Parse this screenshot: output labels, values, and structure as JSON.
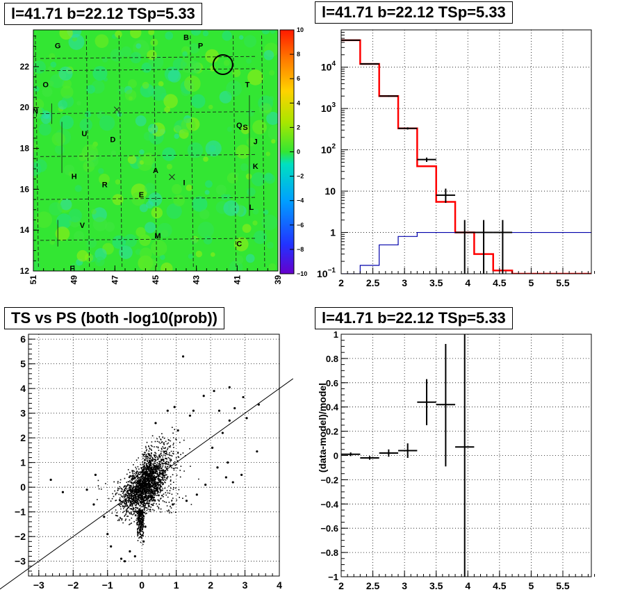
{
  "panels": {
    "map": {
      "title": "l=41.71 b=22.12 TSp=5.33"
    },
    "spectrum": {
      "title": "l=41.71 b=22.12 TSp=5.33"
    },
    "scatter": {
      "title": "TS vs PS (both -log10(prob))"
    },
    "residual": {
      "title": "l=41.71 b=22.12 TSp=5.33"
    }
  },
  "colors": {
    "model": "#ff0000",
    "background_model": "#0000aa",
    "data": "#000000",
    "map_base": "#33e633"
  },
  "chart_data": [
    {
      "type": "heatmap",
      "title": "l=41.71 b=22.12 TSp=5.33",
      "xlim": [
        51,
        39
      ],
      "ylim": [
        12,
        23.8
      ],
      "x_ticks": [
        "51",
        "49",
        "47",
        "45",
        "43",
        "41",
        "39"
      ],
      "y_ticks": [
        "12",
        "14",
        "16",
        "18",
        "20",
        "22"
      ],
      "colorbar": {
        "range": [
          -10,
          10
        ],
        "ticks": [
          "10",
          "8",
          "6",
          "4",
          "2",
          "0",
          "−2",
          "−4",
          "−6",
          "−8",
          "−10"
        ]
      },
      "circle": {
        "l": 41.7,
        "b": 22.1
      },
      "crosses": [
        {
          "l": 46.9,
          "b": 19.9
        },
        {
          "l": 44.2,
          "b": 16.6
        }
      ],
      "labels": [
        {
          "text": "G",
          "l": 49.8,
          "b": 22.9
        },
        {
          "text": "B",
          "l": 43.5,
          "b": 23.3
        },
        {
          "text": "P",
          "l": 42.8,
          "b": 22.9
        },
        {
          "text": "O",
          "l": 50.4,
          "b": 21.0
        },
        {
          "text": "T",
          "l": 40.5,
          "b": 21.0
        },
        {
          "text": "N",
          "l": 50.9,
          "b": 19.7
        },
        {
          "text": "Q",
          "l": 40.9,
          "b": 19.0
        },
        {
          "text": "S",
          "l": 40.6,
          "b": 18.9
        },
        {
          "text": "U",
          "l": 48.5,
          "b": 18.6
        },
        {
          "text": "D",
          "l": 47.1,
          "b": 18.3
        },
        {
          "text": "J",
          "l": 40.1,
          "b": 18.2
        },
        {
          "text": "A",
          "l": 45.0,
          "b": 16.8
        },
        {
          "text": "K",
          "l": 40.1,
          "b": 17.0
        },
        {
          "text": "H",
          "l": 49.0,
          "b": 16.5
        },
        {
          "text": "R",
          "l": 47.5,
          "b": 16.1
        },
        {
          "text": "I",
          "l": 43.6,
          "b": 16.2
        },
        {
          "text": "E",
          "l": 45.7,
          "b": 15.6
        },
        {
          "text": "L",
          "l": 40.3,
          "b": 15.0
        },
        {
          "text": "V",
          "l": 48.6,
          "b": 14.1
        },
        {
          "text": "M",
          "l": 44.9,
          "b": 13.6
        },
        {
          "text": "C",
          "l": 40.9,
          "b": 13.2
        },
        {
          "text": "F",
          "l": 49.1,
          "b": 12.0
        }
      ]
    },
    {
      "type": "line",
      "title": "l=41.71 b=22.12 TSp=5.33",
      "y_scale": "log",
      "xlim": [
        2,
        5.95
      ],
      "ylim": [
        0.1,
        80000
      ],
      "x_ticks": [
        "2",
        "2.5",
        "3",
        "3.5",
        "4",
        "4.5",
        "5",
        "5.5"
      ],
      "y_ticks": [
        {
          "v": 0.1,
          "base": "10",
          "exp": "−1"
        },
        {
          "v": 1,
          "base": "1",
          "exp": ""
        },
        {
          "v": 10,
          "base": "10",
          "exp": ""
        },
        {
          "v": 100,
          "base": "10",
          "exp": "2"
        },
        {
          "v": 1000,
          "base": "10",
          "exp": "3"
        },
        {
          "v": 10000,
          "base": "10",
          "exp": "4"
        }
      ],
      "grid": true,
      "series": [
        {
          "style": "step",
          "color": "#ff0000",
          "edges": [
            2.0,
            2.3,
            2.6,
            2.9,
            3.2,
            3.5,
            3.8,
            4.1,
            4.4,
            4.7,
            5.95
          ],
          "values": [
            45000,
            12000,
            2000,
            330,
            40,
            5.5,
            1.0,
            0.3,
            0.12,
            0.1
          ]
        },
        {
          "style": "step",
          "color": "#0000aa",
          "edges": [
            2.0,
            2.3,
            2.6,
            2.9,
            3.2,
            3.5,
            3.8,
            4.1,
            4.4,
            4.7,
            5.95
          ],
          "values": [
            0.1,
            0.16,
            0.5,
            0.8,
            1.0,
            1.0,
            1.0,
            1.0,
            1.0,
            1.0
          ]
        },
        {
          "style": "errorbar",
          "color": "#000000",
          "points": [
            {
              "x": 2.15,
              "y": 45000,
              "xerr": 0.15,
              "ylo": 44000,
              "yhi": 46000
            },
            {
              "x": 2.45,
              "y": 12000,
              "xerr": 0.15,
              "ylo": 11700,
              "yhi": 12300
            },
            {
              "x": 2.75,
              "y": 2000,
              "xerr": 0.15,
              "ylo": 1920,
              "yhi": 2080
            },
            {
              "x": 3.05,
              "y": 330,
              "xerr": 0.15,
              "ylo": 310,
              "yhi": 350
            },
            {
              "x": 3.35,
              "y": 58,
              "xerr": 0.15,
              "ylo": 51,
              "yhi": 65
            },
            {
              "x": 3.65,
              "y": 8,
              "xerr": 0.15,
              "ylo": 5.2,
              "yhi": 11.5
            },
            {
              "x": 3.95,
              "y": 1,
              "xerr": 0.15,
              "ylo": 0.1,
              "yhi": 2.0
            },
            {
              "x": 4.25,
              "y": 1,
              "xerr": 0.15,
              "ylo": 0.1,
              "yhi": 2.0
            },
            {
              "x": 4.55,
              "y": 1,
              "xerr": 0.15,
              "ylo": 0.1,
              "yhi": 2.0
            }
          ]
        }
      ]
    },
    {
      "type": "scatter",
      "title": "TS vs PS (both -log10(prob))",
      "xlim": [
        -3.3,
        4.0
      ],
      "ylim": [
        -3.6,
        6.2
      ],
      "x_ticks": [
        "−3",
        "−2",
        "−1",
        "0",
        "1",
        "2",
        "3",
        "4"
      ],
      "y_ticks": [
        "−3",
        "−2",
        "−1",
        "0",
        "1",
        "2",
        "3",
        "4",
        "5",
        "6"
      ],
      "grid": true,
      "diagonal": {
        "slope": 1,
        "intercept": 0
      },
      "points": [
        [
          -2.65,
          0.3
        ],
        [
          -2.3,
          -0.2
        ],
        [
          -1.6,
          -0.1
        ],
        [
          -1.4,
          -0.7
        ],
        [
          -1.35,
          0.5
        ],
        [
          -1.1,
          -1.2
        ],
        [
          -1.0,
          -1.9
        ],
        [
          -0.9,
          -2.4
        ],
        [
          -0.6,
          -2.9
        ],
        [
          -0.5,
          -3.0
        ],
        [
          -0.35,
          -2.6
        ],
        [
          -0.2,
          -2.8
        ],
        [
          0.05,
          -2.2
        ],
        [
          0.1,
          -1.6
        ],
        [
          0.4,
          2.6
        ],
        [
          0.75,
          3.1
        ],
        [
          0.95,
          3.25
        ],
        [
          1.05,
          2.3
        ],
        [
          1.2,
          5.3
        ],
        [
          1.4,
          2.9
        ],
        [
          1.5,
          3.1
        ],
        [
          1.8,
          3.7
        ],
        [
          2.1,
          3.9
        ],
        [
          2.55,
          4.05
        ],
        [
          2.25,
          3.1
        ],
        [
          2.35,
          2.2
        ],
        [
          2.05,
          1.6
        ],
        [
          2.5,
          1.0
        ],
        [
          2.45,
          0.4
        ],
        [
          2.65,
          0.2
        ],
        [
          2.55,
          2.7
        ],
        [
          2.7,
          3.2
        ],
        [
          2.95,
          3.65
        ],
        [
          3.05,
          2.8
        ],
        [
          3.4,
          3.35
        ],
        [
          3.35,
          1.45
        ],
        [
          1.85,
          0.1
        ],
        [
          1.6,
          -0.3
        ],
        [
          1.3,
          -0.55
        ],
        [
          0.9,
          -0.7
        ],
        [
          2.9,
          0.5
        ],
        [
          2.2,
          0.8
        ]
      ]
    },
    {
      "type": "scatter",
      "title": "l=41.71 b=22.12 TSp=5.33",
      "ylabel": "(data-model)/model",
      "xlim": [
        2,
        5.95
      ],
      "ylim": [
        -1,
        1
      ],
      "x_ticks": [
        "2",
        "2.5",
        "3",
        "3.5",
        "4",
        "4.5",
        "5",
        "5.5"
      ],
      "y_ticks": [
        "−1",
        "−0.8",
        "−0.6",
        "−0.4",
        "−0.2",
        "0",
        "0.2",
        "0.4",
        "0.6",
        "0.8",
        "1"
      ],
      "grid": true,
      "points": [
        {
          "x": 2.15,
          "y": 0.01,
          "xerr": 0.15,
          "ylo": -0.005,
          "yhi": 0.025
        },
        {
          "x": 2.45,
          "y": -0.02,
          "xerr": 0.15,
          "ylo": -0.035,
          "yhi": -0.005
        },
        {
          "x": 2.75,
          "y": 0.02,
          "xerr": 0.15,
          "ylo": -0.01,
          "yhi": 0.05
        },
        {
          "x": 3.05,
          "y": 0.04,
          "xerr": 0.15,
          "ylo": -0.02,
          "yhi": 0.1
        },
        {
          "x": 3.35,
          "y": 0.44,
          "xerr": 0.15,
          "ylo": 0.25,
          "yhi": 0.63
        },
        {
          "x": 3.65,
          "y": 0.42,
          "xerr": 0.15,
          "ylo": -0.09,
          "yhi": 0.92
        },
        {
          "x": 3.95,
          "y": 0.07,
          "xerr": 0.15,
          "ylo": -1.0,
          "yhi": 1.0
        }
      ]
    }
  ]
}
